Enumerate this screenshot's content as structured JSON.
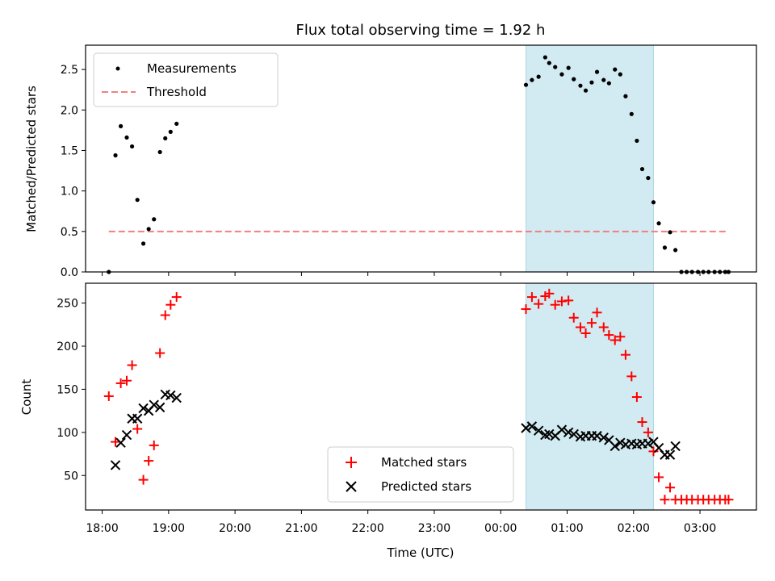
{
  "chart_data": [
    {
      "type": "scatter",
      "panel": "top",
      "title": "Flux total observing time = 1.92 h",
      "xlabel": "",
      "ylabel": "Matched/Predicted stars",
      "xlim": [
        17.75,
        27.85
      ],
      "ylim": [
        0,
        2.8
      ],
      "yticks": [
        0.0,
        0.5,
        1.0,
        1.5,
        2.0,
        2.5
      ],
      "ytick_labels": [
        "0.0",
        "0.5",
        "1.0",
        "1.5",
        "2.0",
        "2.5"
      ],
      "highlight_span": [
        24.38,
        26.3
      ],
      "threshold": {
        "name": "Threshold",
        "value": 0.5,
        "x_range": [
          18.1,
          27.43
        ],
        "color": "#f08080"
      },
      "legend": [
        "Measurements",
        "Threshold"
      ],
      "series": [
        {
          "name": "Measurements",
          "color": "#000000",
          "points": [
            [
              18.1,
              0.0
            ],
            [
              18.2,
              1.44
            ],
            [
              18.28,
              1.8
            ],
            [
              18.37,
              1.66
            ],
            [
              18.45,
              1.55
            ],
            [
              18.53,
              0.89
            ],
            [
              18.62,
              0.35
            ],
            [
              18.7,
              0.53
            ],
            [
              18.78,
              0.65
            ],
            [
              18.87,
              1.48
            ],
            [
              18.95,
              1.65
            ],
            [
              19.03,
              1.73
            ],
            [
              19.12,
              1.83
            ],
            [
              24.38,
              2.31
            ],
            [
              24.47,
              2.37
            ],
            [
              24.57,
              2.41
            ],
            [
              24.67,
              2.65
            ],
            [
              24.73,
              2.58
            ],
            [
              24.82,
              2.53
            ],
            [
              24.92,
              2.44
            ],
            [
              25.02,
              2.52
            ],
            [
              25.1,
              2.38
            ],
            [
              25.2,
              2.3
            ],
            [
              25.28,
              2.24
            ],
            [
              25.37,
              2.34
            ],
            [
              25.45,
              2.47
            ],
            [
              25.55,
              2.37
            ],
            [
              25.63,
              2.33
            ],
            [
              25.72,
              2.5
            ],
            [
              25.8,
              2.44
            ],
            [
              25.88,
              2.17
            ],
            [
              25.97,
              1.95
            ],
            [
              26.05,
              1.62
            ],
            [
              26.13,
              1.27
            ],
            [
              26.22,
              1.16
            ],
            [
              26.3,
              0.86
            ],
            [
              26.38,
              0.6
            ],
            [
              26.47,
              0.3
            ],
            [
              26.55,
              0.49
            ],
            [
              26.63,
              0.27
            ],
            [
              26.72,
              0.0
            ],
            [
              26.8,
              0.0
            ],
            [
              26.88,
              0.0
            ],
            [
              26.97,
              0.0
            ],
            [
              27.05,
              0.0
            ],
            [
              27.13,
              0.0
            ],
            [
              27.22,
              0.0
            ],
            [
              27.3,
              0.0
            ],
            [
              27.38,
              0.0
            ],
            [
              27.43,
              0.0
            ]
          ]
        }
      ]
    },
    {
      "type": "scatter",
      "panel": "bottom",
      "title": "",
      "xlabel": "Time (UTC)",
      "ylabel": "Count",
      "xlim": [
        17.75,
        27.85
      ],
      "ylim": [
        10,
        273
      ],
      "yticks": [
        50,
        100,
        150,
        200,
        250
      ],
      "ytick_labels": [
        "50",
        "100",
        "150",
        "200",
        "250"
      ],
      "xticks": [
        18,
        19,
        20,
        21,
        22,
        23,
        24,
        25,
        26,
        27
      ],
      "xtick_labels": [
        "18:00",
        "19:00",
        "20:00",
        "21:00",
        "22:00",
        "23:00",
        "00:00",
        "01:00",
        "02:00",
        "03:00"
      ],
      "highlight_span": [
        24.38,
        26.3
      ],
      "legend": [
        "Matched stars",
        "Predicted stars"
      ],
      "series": [
        {
          "name": "Matched stars",
          "marker": "plus",
          "color": "#ff0000",
          "points": [
            [
              18.1,
              142
            ],
            [
              18.2,
              89
            ],
            [
              18.28,
              157
            ],
            [
              18.37,
              160
            ],
            [
              18.45,
              178
            ],
            [
              18.53,
              104
            ],
            [
              18.62,
              45
            ],
            [
              18.7,
              67
            ],
            [
              18.78,
              85
            ],
            [
              18.87,
              192
            ],
            [
              18.95,
              236
            ],
            [
              19.03,
              248
            ],
            [
              19.12,
              257
            ],
            [
              24.38,
              243
            ],
            [
              24.47,
              257
            ],
            [
              24.57,
              249
            ],
            [
              24.67,
              258
            ],
            [
              24.73,
              261
            ],
            [
              24.82,
              248
            ],
            [
              24.92,
              252
            ],
            [
              25.02,
              253
            ],
            [
              25.1,
              233
            ],
            [
              25.2,
              222
            ],
            [
              25.28,
              215
            ],
            [
              25.37,
              227
            ],
            [
              25.45,
              239
            ],
            [
              25.55,
              222
            ],
            [
              25.63,
              213
            ],
            [
              25.72,
              207
            ],
            [
              25.8,
              211
            ],
            [
              25.88,
              190
            ],
            [
              25.97,
              165
            ],
            [
              26.05,
              141
            ],
            [
              26.13,
              112
            ],
            [
              26.22,
              100
            ],
            [
              26.3,
              78
            ],
            [
              26.38,
              48
            ],
            [
              26.47,
              22
            ],
            [
              26.55,
              36
            ],
            [
              26.63,
              22
            ],
            [
              26.72,
              22
            ],
            [
              26.8,
              22
            ],
            [
              26.88,
              22
            ],
            [
              26.97,
              22
            ],
            [
              27.05,
              22
            ],
            [
              27.13,
              22
            ],
            [
              27.22,
              22
            ],
            [
              27.3,
              22
            ],
            [
              27.38,
              22
            ],
            [
              27.43,
              22
            ]
          ]
        },
        {
          "name": "Predicted stars",
          "marker": "x",
          "color": "#000000",
          "points": [
            [
              18.2,
              62
            ],
            [
              18.28,
              88
            ],
            [
              18.37,
              97
            ],
            [
              18.45,
              116
            ],
            [
              18.53,
              116
            ],
            [
              18.62,
              128
            ],
            [
              18.7,
              125
            ],
            [
              18.78,
              132
            ],
            [
              18.87,
              129
            ],
            [
              18.95,
              144
            ],
            [
              19.03,
              143
            ],
            [
              19.12,
              140
            ],
            [
              24.38,
              105
            ],
            [
              24.47,
              107
            ],
            [
              24.57,
              102
            ],
            [
              24.67,
              97
            ],
            [
              24.73,
              98
            ],
            [
              24.82,
              96
            ],
            [
              24.92,
              103
            ],
            [
              25.02,
              100
            ],
            [
              25.1,
              98
            ],
            [
              25.2,
              95
            ],
            [
              25.28,
              96
            ],
            [
              25.37,
              96
            ],
            [
              25.45,
              96
            ],
            [
              25.55,
              94
            ],
            [
              25.63,
              91
            ],
            [
              25.72,
              84
            ],
            [
              25.8,
              88
            ],
            [
              25.88,
              86
            ],
            [
              25.97,
              87
            ],
            [
              26.05,
              86
            ],
            [
              26.13,
              87
            ],
            [
              26.22,
              87
            ],
            [
              26.3,
              89
            ],
            [
              26.38,
              82
            ],
            [
              26.47,
              74
            ],
            [
              26.55,
              74
            ],
            [
              26.63,
              84
            ]
          ]
        }
      ]
    }
  ]
}
